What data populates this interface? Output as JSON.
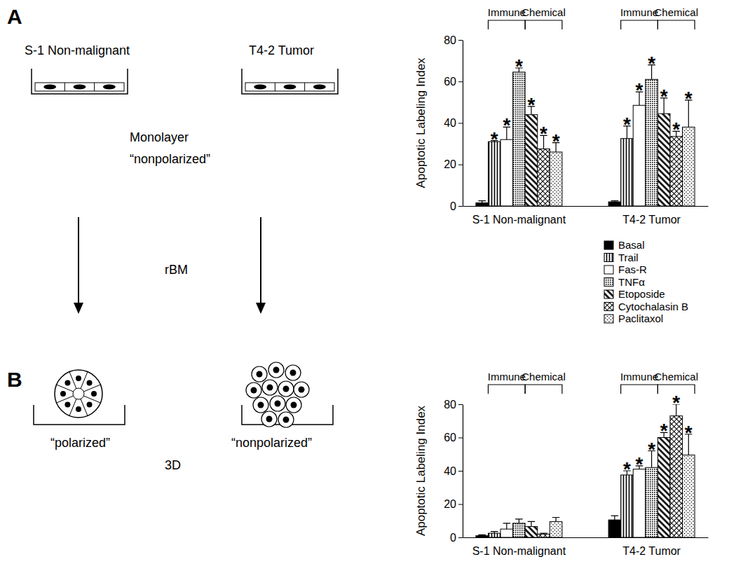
{
  "diagram": {
    "panel_a": {
      "letter": "A",
      "left_label": "S-1 Non-malignant",
      "right_label": "T4-2 Tumor",
      "culture": "Monolayer",
      "state": "“nonpolarized”"
    },
    "transition": "rBM",
    "panel_b": {
      "letter": "B",
      "left_state": "“polarized”",
      "right_state": "“nonpolarized”",
      "culture": "3D"
    }
  },
  "chart_data": [
    {
      "type": "bar",
      "ylabel": "Apoptotic Labeling Index",
      "categories": [
        "S-1 Non-malignant",
        "T4-2 Tumor"
      ],
      "ylim": [
        0,
        80
      ],
      "yticks": [
        0,
        20,
        40,
        60,
        80
      ],
      "legend": "right",
      "groups": [
        {
          "label": "Immune",
          "series": [
            "Trail",
            "Fas-R",
            "TNFα"
          ]
        },
        {
          "label": "Chemical",
          "series": [
            "Etoposide",
            "Cytochalasin B",
            "Paclitaxol"
          ]
        }
      ],
      "series": [
        {
          "name": "Basal",
          "color": "#000000",
          "values": [
            1.5,
            2
          ],
          "errors": [
            1,
            0.5
          ],
          "annotations": [
            null,
            null
          ]
        },
        {
          "name": "Trail",
          "color": "#000000",
          "values": [
            31,
            32.5
          ],
          "errors": [
            0.5,
            6
          ],
          "annotations": [
            "*",
            "*"
          ]
        },
        {
          "name": "Fas-R",
          "color": "#000000",
          "values": [
            32,
            48.5
          ],
          "errors": [
            6,
            6.5
          ],
          "annotations": [
            "*",
            "*"
          ]
        },
        {
          "name": "TNFα",
          "color": "#000000",
          "values": [
            64.5,
            61
          ],
          "errors": [
            2,
            7
          ],
          "annotations": [
            "*",
            "*"
          ]
        },
        {
          "name": "Etoposide",
          "color": "#000000",
          "values": [
            44,
            44.5
          ],
          "errors": [
            4,
            7.5
          ],
          "annotations": [
            "*",
            "*"
          ]
        },
        {
          "name": "Cytochalasin B",
          "color": "#000000",
          "values": [
            27.5,
            33.5
          ],
          "errors": [
            6.5,
            2.5
          ],
          "annotations": [
            "*",
            "*"
          ]
        },
        {
          "name": "Paclitaxol",
          "color": "#000000",
          "values": [
            26,
            38
          ],
          "errors": [
            4.5,
            13
          ],
          "annotations": [
            "*",
            "*"
          ]
        }
      ]
    },
    {
      "type": "bar",
      "ylabel": "Apoptotic Labeling Index",
      "categories": [
        "S-1 Non-malignant",
        "T4-2 Tumor"
      ],
      "ylim": [
        0,
        80
      ],
      "yticks": [
        0,
        20,
        40,
        60,
        80
      ],
      "groups": [
        {
          "label": "Immune",
          "series": [
            "Trail",
            "Fas-R",
            "TNFα"
          ]
        },
        {
          "label": "Chemical",
          "series": [
            "Etoposide",
            "Cytochalasin B",
            "Paclitaxol"
          ]
        }
      ],
      "series": [
        {
          "name": "Basal",
          "color": "#000000",
          "values": [
            1,
            10.5
          ],
          "errors": [
            0.5,
            2.5
          ],
          "annotations": [
            null,
            null
          ]
        },
        {
          "name": "Trail",
          "color": "#000000",
          "values": [
            2.5,
            37.5
          ],
          "errors": [
            1,
            2.5
          ],
          "annotations": [
            null,
            "*"
          ]
        },
        {
          "name": "Fas-R",
          "color": "#000000",
          "values": [
            5,
            41
          ],
          "errors": [
            3.5,
            2
          ],
          "annotations": [
            null,
            "*"
          ]
        },
        {
          "name": "TNFα",
          "color": "#000000",
          "values": [
            8.5,
            42
          ],
          "errors": [
            2.5,
            10
          ],
          "annotations": [
            null,
            "*"
          ]
        },
        {
          "name": "Etoposide",
          "color": "#000000",
          "values": [
            6.5,
            60
          ],
          "errors": [
            3,
            3
          ],
          "annotations": [
            null,
            "*"
          ]
        },
        {
          "name": "Cytochalasin B",
          "color": "#000000",
          "values": [
            2,
            73
          ],
          "errors": [
            0.5,
            7
          ],
          "annotations": [
            null,
            "*"
          ]
        },
        {
          "name": "Paclitaxol",
          "color": "#000000",
          "values": [
            9.5,
            49.5
          ],
          "errors": [
            2.5,
            12.5
          ],
          "annotations": [
            null,
            "*"
          ]
        }
      ]
    }
  ]
}
